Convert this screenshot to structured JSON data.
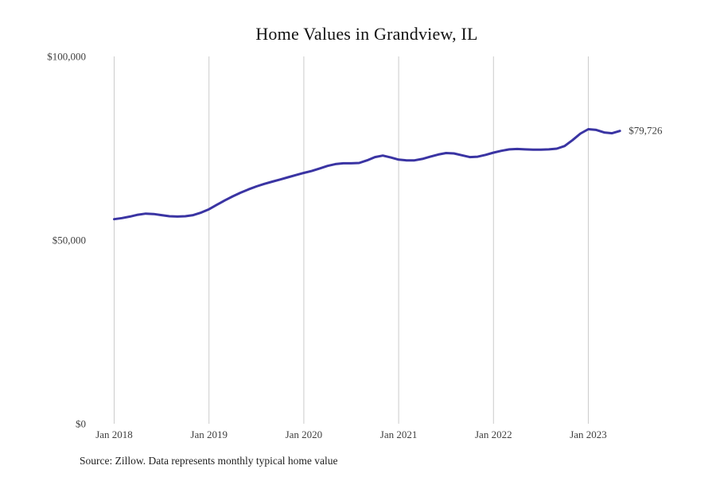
{
  "chart": {
    "title": "Home Values in Grandview, IL",
    "source": "Source: Zillow. Data represents monthly typical home value",
    "current_value_label": "$79,726"
  },
  "chart_data": {
    "type": "line",
    "title": "Home Values in Grandview, IL",
    "series_name": "Monthly typical home value",
    "x": [
      "Jan 2018",
      "Feb 2018",
      "Mar 2018",
      "Apr 2018",
      "May 2018",
      "Jun 2018",
      "Jul 2018",
      "Aug 2018",
      "Sep 2018",
      "Oct 2018",
      "Nov 2018",
      "Dec 2018",
      "Jan 2019",
      "Feb 2019",
      "Mar 2019",
      "Apr 2019",
      "May 2019",
      "Jun 2019",
      "Jul 2019",
      "Aug 2019",
      "Sep 2019",
      "Oct 2019",
      "Nov 2019",
      "Dec 2019",
      "Jan 2020",
      "Feb 2020",
      "Mar 2020",
      "Apr 2020",
      "May 2020",
      "Jun 2020",
      "Jul 2020",
      "Aug 2020",
      "Sep 2020",
      "Oct 2020",
      "Nov 2020",
      "Dec 2020",
      "Jan 2021",
      "Feb 2021",
      "Mar 2021",
      "Apr 2021",
      "May 2021",
      "Jun 2021",
      "Jul 2021",
      "Aug 2021",
      "Sep 2021",
      "Oct 2021",
      "Nov 2021",
      "Dec 2021",
      "Jan 2022",
      "Feb 2022",
      "Mar 2022",
      "Apr 2022",
      "May 2022",
      "Jun 2022",
      "Jul 2022",
      "Aug 2022",
      "Sep 2022",
      "Oct 2022",
      "Nov 2022",
      "Dec 2022",
      "Jan 2023",
      "Feb 2023",
      "Mar 2023",
      "Apr 2023",
      "May 2023"
    ],
    "values": [
      55700,
      56000,
      56400,
      56900,
      57200,
      57100,
      56800,
      56500,
      56400,
      56500,
      56800,
      57500,
      58400,
      59600,
      60800,
      61900,
      62900,
      63800,
      64600,
      65300,
      65900,
      66500,
      67100,
      67700,
      68300,
      68800,
      69500,
      70200,
      70700,
      70900,
      70900,
      71000,
      71700,
      72600,
      73000,
      72500,
      71900,
      71700,
      71700,
      72100,
      72700,
      73300,
      73700,
      73600,
      73100,
      72600,
      72700,
      73200,
      73800,
      74300,
      74700,
      74800,
      74700,
      74600,
      74600,
      74700,
      74900,
      75600,
      77200,
      79000,
      80200,
      80000,
      79300,
      79100,
      79726
    ],
    "x_ticks": [
      {
        "index": 0,
        "label": "Jan 2018"
      },
      {
        "index": 12,
        "label": "Jan 2019"
      },
      {
        "index": 24,
        "label": "Jan 2020"
      },
      {
        "index": 36,
        "label": "Jan 2021"
      },
      {
        "index": 48,
        "label": "Jan 2022"
      },
      {
        "index": 60,
        "label": "Jan 2023"
      }
    ],
    "y_ticks": [
      {
        "value": 0,
        "label": "$0"
      },
      {
        "value": 50000,
        "label": "$50,000"
      },
      {
        "value": 100000,
        "label": "$100,000"
      }
    ],
    "ylim": [
      0,
      100000
    ],
    "grid": "vertical-only",
    "legend": "none",
    "end_label": "$79,726",
    "line_color": "#3a34a3",
    "grid_color": "#cccccc",
    "tick_text_color": "#3f3f3f"
  }
}
